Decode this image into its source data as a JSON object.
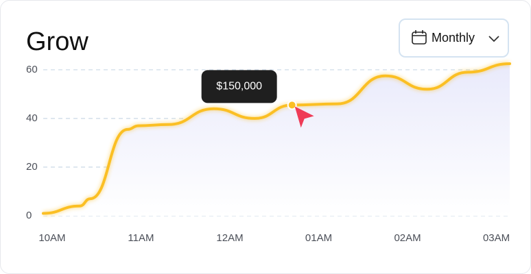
{
  "chart_data": {
    "type": "line",
    "title": "Grow",
    "selector": "Monthly",
    "tooltip": "$150,000",
    "x": [
      -0.1,
      0.31,
      0.43,
      0.85,
      0.97,
      1.31,
      1.82,
      2.28,
      2.7,
      3.21,
      3.75,
      4.22,
      4.68,
      5.15
    ],
    "values": [
      1,
      4,
      7,
      35.5,
      37,
      37.5,
      44,
      40,
      45.5,
      46,
      57.5,
      52,
      59,
      62.5
    ],
    "color": "#fbbf24",
    "xlim": [
      -0.1,
      5.15
    ],
    "xticks": [
      {
        "value": 0,
        "label": "10AM"
      },
      {
        "value": 1,
        "label": "11AM"
      },
      {
        "value": 2,
        "label": "12AM"
      },
      {
        "value": 3,
        "label": "01AM"
      },
      {
        "value": 4,
        "label": "02AM"
      },
      {
        "value": 5,
        "label": "03AM"
      }
    ],
    "ylim": [
      0,
      62.5
    ],
    "yticks": [
      0,
      20,
      40,
      60
    ],
    "grid": true
  }
}
